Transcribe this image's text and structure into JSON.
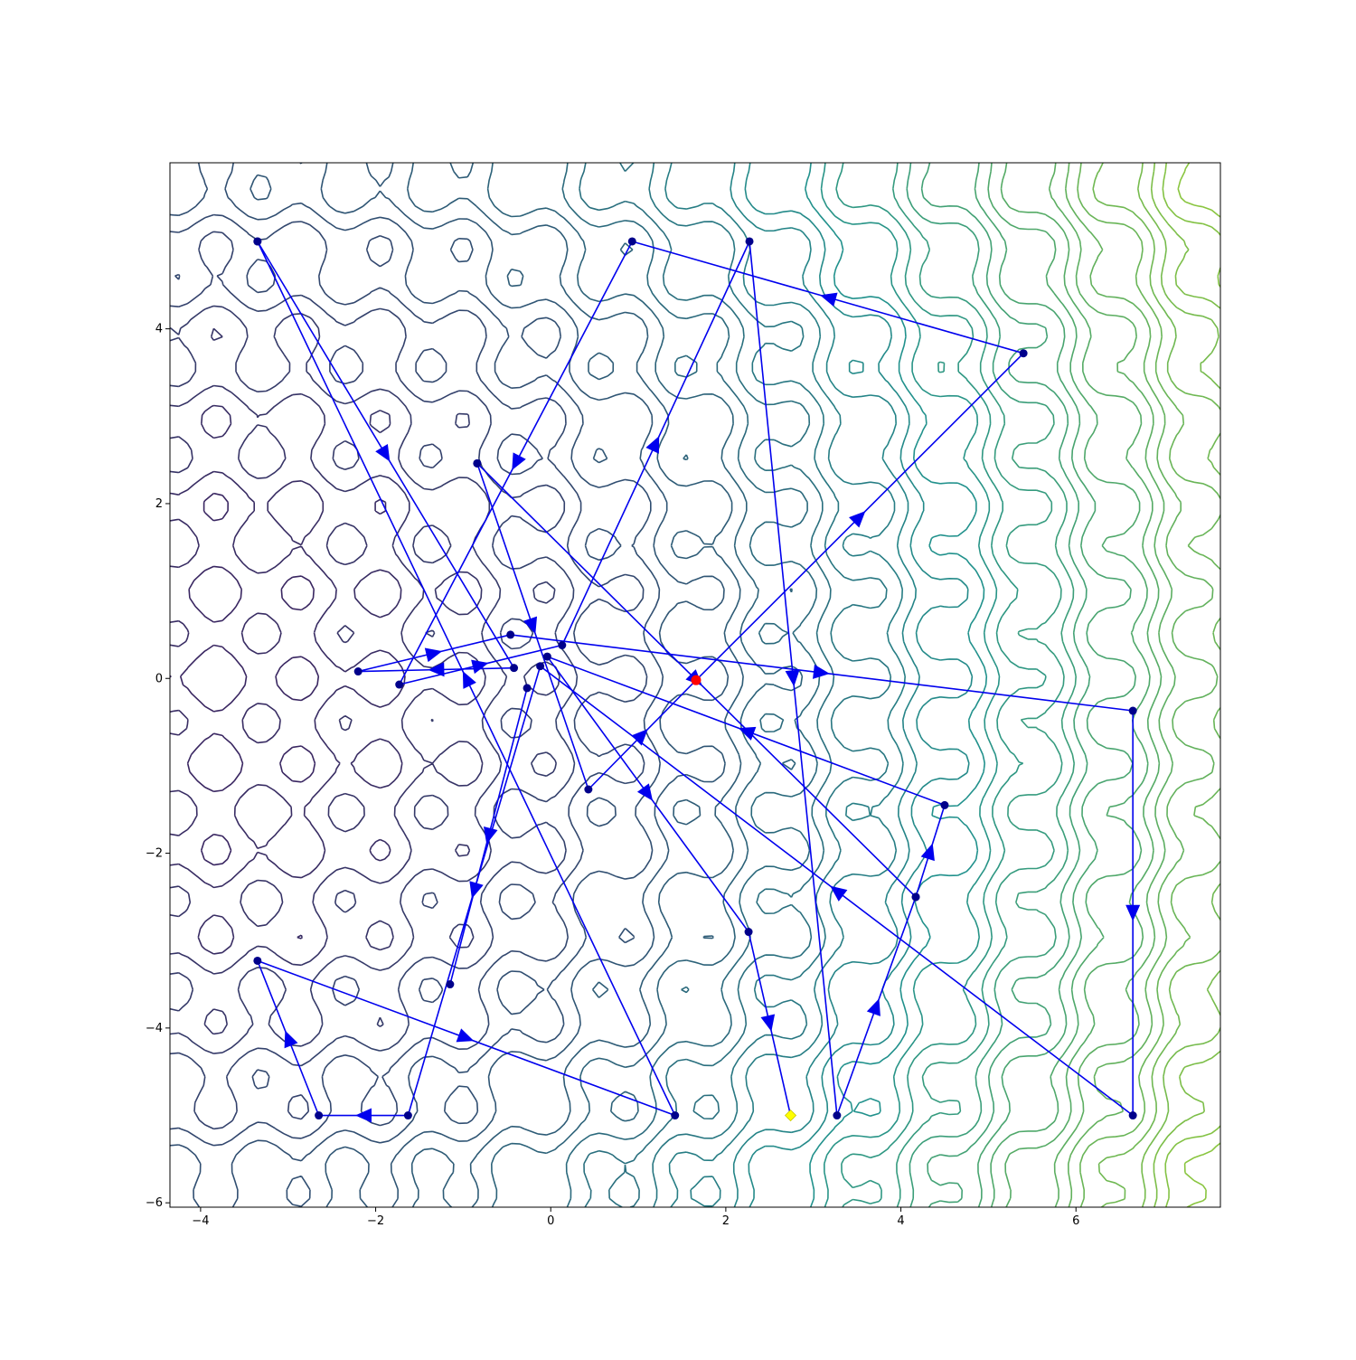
{
  "chart_data": {
    "type": "line",
    "title": "",
    "xlabel": "",
    "ylabel": "",
    "xlim": [
      -4.35,
      7.65
    ],
    "ylim": [
      -6.05,
      5.9
    ],
    "xticks": [
      -4,
      -2,
      0,
      2,
      4,
      6
    ],
    "yticks": [
      -6,
      -4,
      -2,
      0,
      2,
      4
    ],
    "xtick_labels": [
      "−4",
      "−2",
      "0",
      "2",
      "4",
      "6"
    ],
    "ytick_labels": [
      "−6",
      "−4",
      "−2",
      "0",
      "2",
      "4"
    ],
    "grid": false,
    "background": "contour plot of an objective function (minimum near x=-1.7, y=-0.05; values rising toward the right)",
    "colors": {
      "path": "#0000ee",
      "point": "#00008b",
      "start": "#ff0000",
      "end": "#ffff00",
      "contour_low": "#3b1f5e",
      "contour_mid": "#21918c",
      "contour_high": "#90c83a"
    },
    "start_point": [
      1.66,
      -0.02
    ],
    "end_point": [
      2.74,
      -5.0
    ],
    "path": [
      [
        1.66,
        -0.02
      ],
      [
        5.4,
        3.72
      ],
      [
        0.93,
        5.0
      ],
      [
        -1.73,
        -0.07
      ],
      [
        0.13,
        0.38
      ],
      [
        2.27,
        5.0
      ],
      [
        3.27,
        -5.0
      ],
      [
        4.17,
        -2.5
      ],
      [
        4.5,
        -1.45
      ],
      [
        -0.04,
        0.25
      ],
      [
        2.26,
        -2.9
      ],
      [
        2.74,
        -5.0
      ]
    ],
    "path2": [
      [
        -3.35,
        5.0
      ],
      [
        -0.42,
        0.12
      ],
      [
        -2.2,
        0.08
      ],
      [
        -0.46,
        0.5
      ],
      [
        6.65,
        -0.37
      ],
      [
        6.65,
        -5.0
      ],
      [
        -0.12,
        0.14
      ],
      [
        -1.63,
        -5.0
      ],
      [
        -2.65,
        -5.0
      ],
      [
        -3.35,
        -3.23
      ],
      [
        1.42,
        -5.0
      ],
      [
        -3.35,
        5.0
      ]
    ],
    "path3": [
      [
        -0.84,
        2.46
      ],
      [
        0.43,
        -1.27
      ],
      [
        1.66,
        -0.02
      ]
    ],
    "path4": [
      [
        -0.84,
        2.46
      ],
      [
        4.17,
        -2.5
      ]
    ],
    "path5": [
      [
        -0.27,
        -0.11
      ],
      [
        -1.15,
        -3.5
      ]
    ]
  }
}
